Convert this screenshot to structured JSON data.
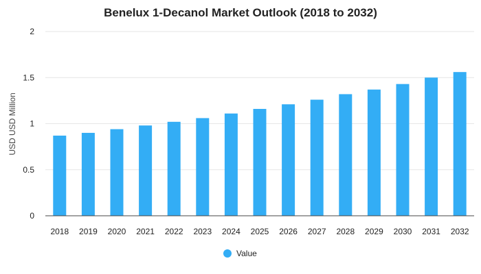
{
  "chart_data": {
    "type": "bar",
    "title": "Benelux 1-Decanol Market Outlook (2018 to 2032)",
    "xlabel": "",
    "ylabel": "USD USD Million",
    "categories": [
      "2018",
      "2019",
      "2020",
      "2021",
      "2022",
      "2023",
      "2024",
      "2025",
      "2026",
      "2027",
      "2028",
      "2029",
      "2030",
      "2031",
      "2032"
    ],
    "series": [
      {
        "name": "Value",
        "values": [
          0.87,
          0.9,
          0.94,
          0.98,
          1.02,
          1.06,
          1.11,
          1.16,
          1.21,
          1.26,
          1.32,
          1.37,
          1.43,
          1.5,
          1.56
        ]
      }
    ],
    "ylim": [
      0,
      2
    ],
    "yticks": [
      "0",
      "0.5",
      "1",
      "1.5",
      "2"
    ],
    "grid": true,
    "legend_position": "bottom",
    "colors": {
      "bar": "#33adf5",
      "text": "#222222",
      "grid": "#e6e6e6"
    }
  }
}
